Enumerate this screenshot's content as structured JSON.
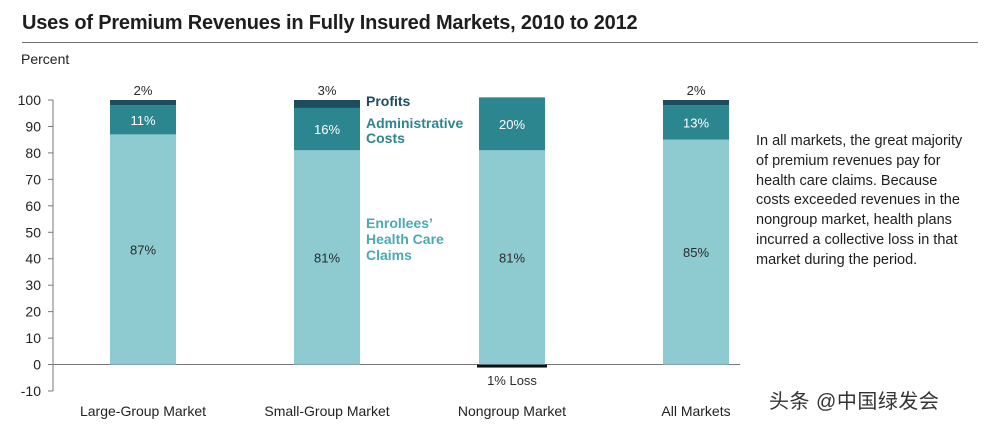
{
  "chart_data": {
    "type": "bar",
    "stacked": true,
    "title": "Uses of Premium Revenues in Fully Insured Markets, 2010 to 2012",
    "ylabel": "Percent",
    "xlabel": "",
    "ylim": [
      -10,
      100
    ],
    "yticks": [
      -10,
      0,
      10,
      20,
      30,
      40,
      50,
      60,
      70,
      80,
      90,
      100
    ],
    "grid": false,
    "categories": [
      "Large-Group Market",
      "Small-Group Market",
      "Nongroup Market",
      "All Markets"
    ],
    "series": [
      {
        "name": "Enrollees' Health Care Claims",
        "color": "#8dcbd1",
        "values": [
          87,
          81,
          81,
          85
        ],
        "labels": [
          "87%",
          "81%",
          "81%",
          "85%"
        ]
      },
      {
        "name": "Administrative Costs",
        "color": "#2c8690",
        "values": [
          11,
          16,
          20,
          13
        ],
        "labels": [
          "11%",
          "16%",
          "20%",
          "13%"
        ]
      },
      {
        "name": "Profits",
        "color": "#1c4c5e",
        "values": [
          2,
          3,
          -1,
          2
        ],
        "labels": [
          "2%",
          "3%",
          "1% Loss",
          "2%"
        ]
      }
    ],
    "legend": [
      {
        "lines": [
          "Profits"
        ],
        "color": "#1c4c5e"
      },
      {
        "lines": [
          "Administrative",
          "Costs"
        ],
        "color": "#2c8690"
      },
      {
        "lines": [
          "Enrollees’",
          "Health Care",
          "Claims"
        ],
        "color": "#49aab3"
      }
    ],
    "loss_color": "#111111"
  },
  "note": "In all markets, the great majority of premium revenues pay for health care claims. Because costs exceeded revenues in the nongroup market, health plans incurred a collective loss in that market during the period.",
  "watermark": "头条 @中国绿发会"
}
